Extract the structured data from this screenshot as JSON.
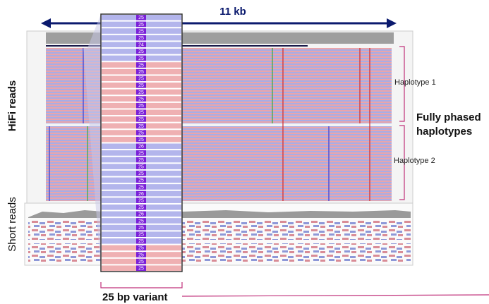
{
  "figure": {
    "span_label": "11 kb",
    "hifi_label": "HiFi reads",
    "short_label": "Short reads",
    "haplotype_labels": [
      "Haplotype 1",
      "Haplotype 2"
    ],
    "phased_label": [
      "Fully phased",
      "haplotypes"
    ],
    "variant_label": "25 bp variant",
    "zoom_rows": [
      {
        "label": "25",
        "color": "#b3b5ec"
      },
      {
        "label": "25",
        "color": "#b3b5ec"
      },
      {
        "label": "25",
        "color": "#b3b5ec"
      },
      {
        "label": "25",
        "color": "#b3b5ec"
      },
      {
        "label": "24",
        "color": "#b3b5ec"
      },
      {
        "label": "25",
        "color": "#b3b5ec"
      },
      {
        "label": "25",
        "color": "#b3b5ec"
      },
      {
        "label": "25",
        "color": "#efb0b2"
      },
      {
        "label": "25",
        "color": "#efb0b2"
      },
      {
        "label": "25",
        "color": "#efb0b2"
      },
      {
        "label": "25",
        "color": "#efb0b2"
      },
      {
        "label": "25",
        "color": "#efb0b2"
      },
      {
        "label": "25",
        "color": "#efb0b2"
      },
      {
        "label": "25",
        "color": "#efb0b2"
      },
      {
        "label": "25",
        "color": "#efb0b2"
      },
      {
        "label": "25",
        "color": "#efb0b2"
      },
      {
        "label": "25",
        "color": "#efb0b2"
      },
      {
        "label": "25",
        "color": "#efb0b2"
      },
      {
        "label": "25",
        "color": "#efb0b2"
      },
      {
        "label": "26",
        "color": "#b3b5ec"
      },
      {
        "label": "25",
        "color": "#b3b5ec"
      },
      {
        "label": "25",
        "color": "#b3b5ec"
      },
      {
        "label": "25",
        "color": "#b3b5ec"
      },
      {
        "label": "25",
        "color": "#b3b5ec"
      },
      {
        "label": "25",
        "color": "#b3b5ec"
      },
      {
        "label": "25",
        "color": "#b3b5ec"
      },
      {
        "label": "26",
        "color": "#b3b5ec"
      },
      {
        "label": "25",
        "color": "#b3b5ec"
      },
      {
        "label": "25",
        "color": "#b3b5ec"
      },
      {
        "label": "26",
        "color": "#b3b5ec"
      },
      {
        "label": "25",
        "color": "#b3b5ec"
      },
      {
        "label": "25",
        "color": "#b3b5ec"
      },
      {
        "label": "25",
        "color": "#b3b5ec"
      },
      {
        "label": "25",
        "color": "#b3b5ec"
      },
      {
        "label": "25",
        "color": "#efb0b2"
      },
      {
        "label": "25",
        "color": "#efb0b2"
      },
      {
        "label": "25",
        "color": "#efb0b2"
      },
      {
        "label": "25",
        "color": "#efb0b2"
      }
    ]
  }
}
